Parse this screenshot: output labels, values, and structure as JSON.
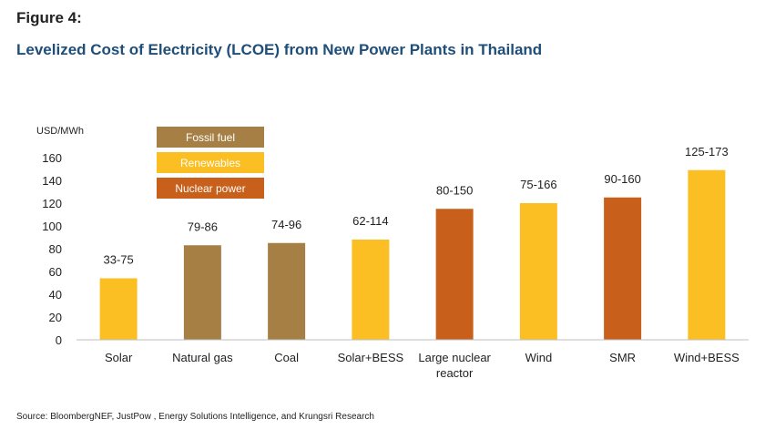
{
  "figure_label": "Figure 4:",
  "title": "Levelized Cost of Electricity (LCOE) from New Power Plants in Thailand",
  "source": "Source: BloombergNEF, JustPow , Energy Solutions Intelligence, and Krungsri Research",
  "colors": {
    "fossil": "#a67f45",
    "renewables": "#fbbf24",
    "nuclear": "#c85f1a"
  },
  "chart_data": {
    "type": "bar",
    "ylabel": "USD/MWh",
    "ylim": [
      0,
      160
    ],
    "yticks": [
      0,
      20,
      40,
      60,
      80,
      100,
      120,
      140,
      160
    ],
    "categories": [
      [
        "Solar"
      ],
      [
        "Natural gas"
      ],
      [
        "Coal"
      ],
      [
        "Solar+BESS"
      ],
      [
        "Large nuclear",
        "reactor"
      ],
      [
        "Wind"
      ],
      [
        "SMR"
      ],
      [
        "Wind+BESS"
      ]
    ],
    "values": [
      54,
      83,
      85,
      88,
      115,
      120,
      125,
      149
    ],
    "data_labels": [
      "33-75",
      "79-86",
      "74-96",
      "62-114",
      "80-150",
      "75-166",
      "90-160",
      "125-173"
    ],
    "groups": [
      "renewables",
      "fossil",
      "fossil",
      "renewables",
      "nuclear",
      "renewables",
      "nuclear",
      "renewables"
    ],
    "legend": [
      {
        "key": "fossil",
        "label": "Fossil fuel"
      },
      {
        "key": "renewables",
        "label": "Renewables"
      },
      {
        "key": "nuclear",
        "label": "Nuclear power"
      }
    ]
  }
}
